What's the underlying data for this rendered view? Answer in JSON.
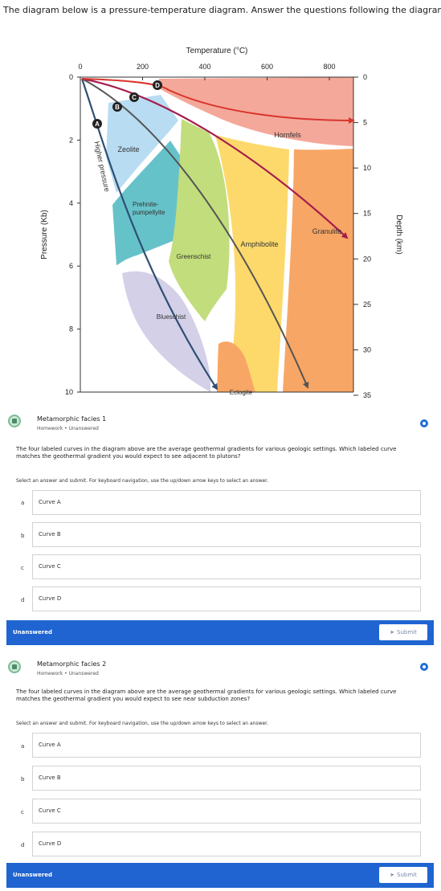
{
  "intro": "The diagram below is a pressure-temperature diagram. Answer the questions following the diagram.",
  "diagram": {
    "top_axis_label": "Temperature (°C)",
    "top_ticks": [
      "0",
      "200",
      "400",
      "600",
      "800"
    ],
    "left_axis_label": "Pressure (Kb)",
    "left_ticks": [
      "0",
      "2",
      "4",
      "6",
      "8",
      "10"
    ],
    "right_axis_label": "Depth (km)",
    "right_ticks": [
      "0",
      "5",
      "10",
      "15",
      "20",
      "25",
      "30",
      "35"
    ],
    "facies": {
      "zeolite": "Zeolite",
      "prehnite_1": "Prehnite-",
      "prehnite_2": "pumpellyite",
      "hornfels": "Hornfels",
      "greenschist": "Greenschist",
      "amphibolite": "Amphibolite",
      "granulite": "Granulite",
      "blueschist": "Blueschist",
      "eclogite": "Eclogite",
      "higher_pressure": "Higher pressure"
    },
    "curves": [
      "A",
      "B",
      "C",
      "D"
    ],
    "colors": {
      "hornfels": "#f4a89a",
      "zeolite": "#b8dcf2",
      "prehnite": "#66c2c9",
      "greenschist": "#c2dd7c",
      "amphibolite": "#fdd96c",
      "granulite": "#f8a665",
      "blueschist": "#d3d0e8",
      "eclogite": "#f8a665",
      "curve_a": "#2f4f72",
      "curve_b": "#555555",
      "curve_c": "#a61b4e",
      "curve_d": "#d8362d"
    }
  },
  "questions": [
    {
      "title": "Metamorphic facies 1",
      "meta": "Homework  •  Unanswered",
      "text": "The four labeled curves in the diagram above are the average geothermal gradients for various geologic settings. Which labeled curve matches the geothermal gradient you would expect to see adjacent to plutons?",
      "instructions": "Select an answer and submit. For keyboard navigation, use the up/down arrow keys to select an answer.",
      "options": [
        {
          "letter": "a",
          "label": "Curve A"
        },
        {
          "letter": "b",
          "label": "Curve B"
        },
        {
          "letter": "c",
          "label": "Curve C"
        },
        {
          "letter": "d",
          "label": "Curve D"
        }
      ],
      "status": "Unanswered",
      "submit": "Submit"
    },
    {
      "title": "Metamorphic facies 2",
      "meta": "Homework  •  Unanswered",
      "text": "The four labeled curves in the diagram above are the average geothermal gradients for various geologic settings. Which labeled curve matches the geothermal gradient you would expect to see near subduction zones?",
      "instructions": "Select an answer and submit. For keyboard navigation, use the up/down arrow keys to select an answer.",
      "options": [
        {
          "letter": "a",
          "label": "Curve A"
        },
        {
          "letter": "b",
          "label": "Curve B"
        },
        {
          "letter": "c",
          "label": "Curve C"
        },
        {
          "letter": "d",
          "label": "Curve D"
        }
      ],
      "status": "Unanswered",
      "submit": "Submit"
    }
  ]
}
